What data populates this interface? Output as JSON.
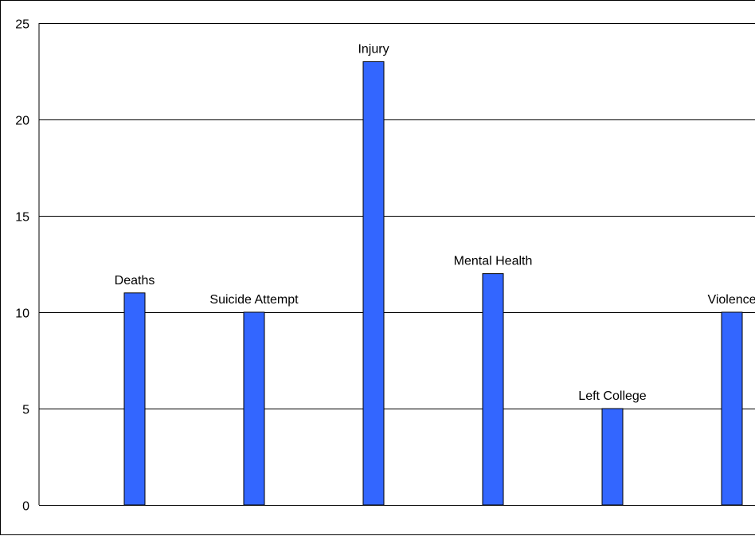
{
  "chart_data": {
    "type": "bar",
    "categories": [
      "Deaths",
      "Suicide Attempt",
      "Injury",
      "Mental Health",
      "Left College",
      "Violence"
    ],
    "values": [
      11,
      10,
      23,
      12,
      5,
      10
    ],
    "data_labels": [
      "Deaths",
      "Suicide Attempt",
      "Injury",
      "Mental Health",
      "Left College",
      "Violence"
    ],
    "ylim": [
      0,
      25
    ],
    "yticks": [
      0,
      5,
      10,
      15,
      20,
      25
    ],
    "ytick_labels": [
      "0",
      "5",
      "10",
      "15",
      "20",
      "25"
    ],
    "grid": true,
    "legend": "none",
    "bar_color": "#3366ff",
    "bar_edge_color": "#000000",
    "grid_color": "#000000"
  }
}
